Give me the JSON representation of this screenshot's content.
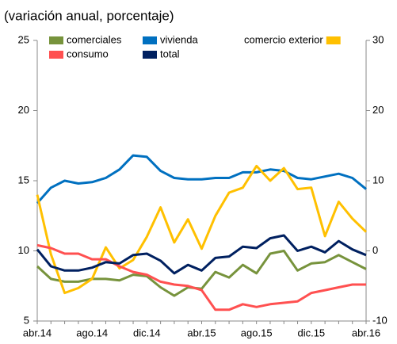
{
  "chart_data": {
    "type": "line",
    "subtitle": "(variación anual, porcentaje)",
    "categories": [
      "abr.14",
      null,
      null,
      null,
      "ago.14",
      null,
      null,
      null,
      "dic.14",
      null,
      null,
      null,
      "abr.15",
      null,
      null,
      null,
      "ago.15",
      null,
      null,
      null,
      "dic.15",
      null,
      null,
      null,
      "abr.16"
    ],
    "ylim": [
      5,
      25
    ],
    "yticks": [
      5,
      10,
      15,
      20,
      25
    ],
    "y2lim": [
      -10,
      30
    ],
    "y2ticks": [
      -10,
      0,
      10,
      20,
      30
    ],
    "series": [
      {
        "name": "comerciales",
        "color": "#77933c",
        "values": [
          8.9,
          8.0,
          7.8,
          7.8,
          8.0,
          8.0,
          7.9,
          8.3,
          8.2,
          7.4,
          6.8,
          7.4,
          7.3,
          8.5,
          8.1,
          9.0,
          8.4,
          9.8,
          10.0,
          8.6,
          9.1,
          9.2,
          9.7,
          9.2,
          8.7
        ]
      },
      {
        "name": "vivienda",
        "color": "#0070c0",
        "values": [
          13.4,
          14.5,
          15.0,
          14.8,
          14.9,
          15.2,
          15.8,
          16.8,
          16.7,
          15.7,
          15.2,
          15.1,
          15.1,
          15.2,
          15.2,
          15.6,
          15.6,
          15.8,
          15.7,
          15.2,
          15.1,
          15.3,
          15.5,
          15.2,
          14.4
        ]
      },
      {
        "name": "comercio exterior",
        "color": "#ffc000",
        "axis": "y2",
        "values": [
          8,
          -0.5,
          -6,
          -5.3,
          -4,
          0.5,
          -2.5,
          -1.3,
          2,
          6.2,
          1.2,
          4.5,
          0.3,
          5,
          8.3,
          9,
          12.1,
          10,
          11.8,
          8.8,
          9,
          2.1,
          7,
          4.6,
          2.7
        ]
      },
      {
        "name": "consumo",
        "color": "#ff5050",
        "values": [
          10.4,
          10.2,
          9.8,
          9.8,
          9.4,
          9.4,
          8.9,
          8.5,
          8.3,
          7.8,
          7.6,
          7.5,
          7.2,
          5.8,
          5.8,
          6.2,
          6.0,
          6.2,
          6.3,
          6.4,
          7.0,
          7.2,
          7.4,
          7.6,
          7.6
        ]
      },
      {
        "name": "total",
        "color": "#002060",
        "values": [
          10.1,
          8.9,
          8.6,
          8.6,
          8.8,
          9.2,
          9.1,
          9.7,
          9.8,
          9.3,
          8.4,
          9.0,
          8.6,
          9.5,
          9.6,
          10.3,
          10.2,
          10.9,
          11.1,
          10.0,
          10.3,
          9.9,
          10.7,
          10.1,
          9.7
        ]
      }
    ]
  }
}
